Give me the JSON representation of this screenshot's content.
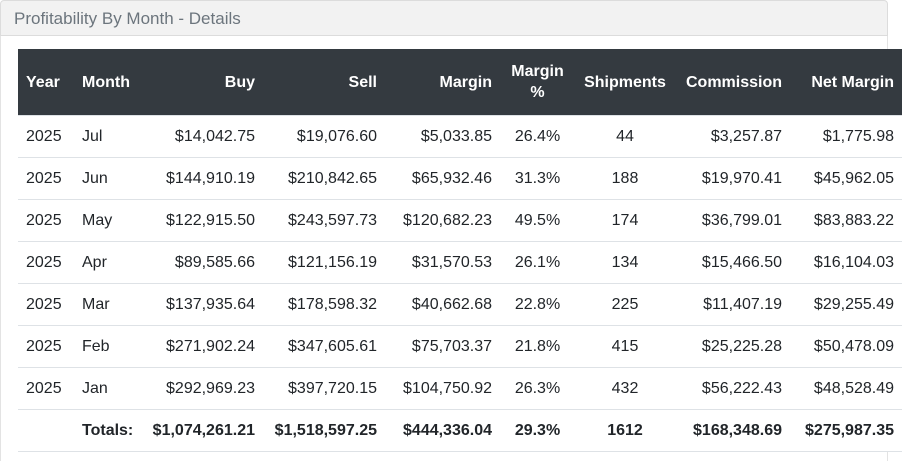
{
  "header": {
    "title": "Profitability By Month - Details"
  },
  "table": {
    "columns": [
      "Year",
      "Month",
      "Buy",
      "Sell",
      "Margin",
      "Margin %",
      "Shipments",
      "Commission",
      "Net Margin"
    ],
    "rows": [
      [
        "2025",
        "Jul",
        "$14,042.75",
        "$19,076.60",
        "$5,033.85",
        "26.4%",
        "44",
        "$3,257.87",
        "$1,775.98"
      ],
      [
        "2025",
        "Jun",
        "$144,910.19",
        "$210,842.65",
        "$65,932.46",
        "31.3%",
        "188",
        "$19,970.41",
        "$45,962.05"
      ],
      [
        "2025",
        "May",
        "$122,915.50",
        "$243,597.73",
        "$120,682.23",
        "49.5%",
        "174",
        "$36,799.01",
        "$83,883.22"
      ],
      [
        "2025",
        "Apr",
        "$89,585.66",
        "$121,156.19",
        "$31,570.53",
        "26.1%",
        "134",
        "$15,466.50",
        "$16,104.03"
      ],
      [
        "2025",
        "Mar",
        "$137,935.64",
        "$178,598.32",
        "$40,662.68",
        "22.8%",
        "225",
        "$11,407.19",
        "$29,255.49"
      ],
      [
        "2025",
        "Feb",
        "$271,902.24",
        "$347,605.61",
        "$75,703.37",
        "21.8%",
        "415",
        "$25,225.28",
        "$50,478.09"
      ],
      [
        "2025",
        "Jan",
        "$292,969.23",
        "$397,720.15",
        "$104,750.92",
        "26.3%",
        "432",
        "$56,222.43",
        "$48,528.49"
      ]
    ],
    "totals": {
      "label": "Totals:",
      "values": [
        "$1,074,261.21",
        "$1,518,597.25",
        "$444,336.04",
        "29.3%",
        "1612",
        "$168,348.69",
        "$275,987.35"
      ]
    }
  }
}
